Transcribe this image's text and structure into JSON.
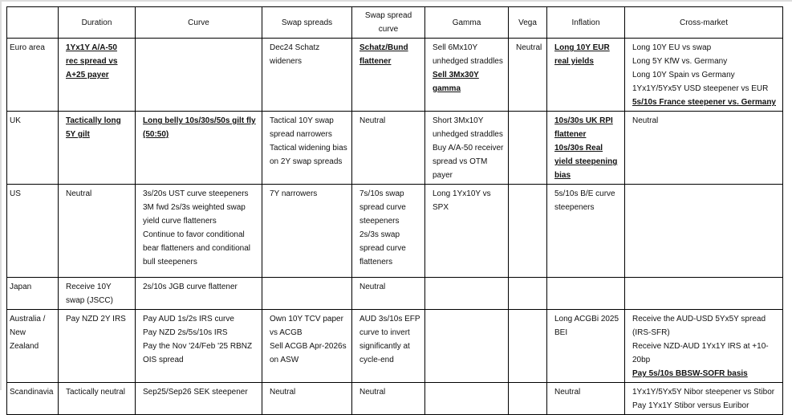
{
  "table": {
    "headers": [
      "",
      "Duration",
      "Curve",
      "Swap spreads",
      "Swap spread curve",
      "Gamma",
      "Vega",
      "Inflation",
      "Cross-market"
    ],
    "rows": [
      {
        "region": "Euro area",
        "cells": [
          [
            {
              "text": "1Yx1Y A/A-50 rec spread vs A+25 payer",
              "bold": true
            }
          ],
          [],
          [
            {
              "text": "Dec24 Schatz wideners",
              "bold": false
            }
          ],
          [
            {
              "text": "Schatz/Bund flattener",
              "bold": true
            }
          ],
          [
            {
              "text": "Sell 6Mx10Y unhedged straddles",
              "bold": false
            },
            {
              "text": "Sell 3Mx30Y gamma",
              "bold": true
            }
          ],
          [
            {
              "text": "Neutral",
              "bold": false
            }
          ],
          [
            {
              "text": "Long 10Y EUR real yields",
              "bold": true
            }
          ],
          [
            {
              "text": "Long 10Y EU vs swap",
              "bold": false
            },
            {
              "text": "Long 5Y KfW vs. Germany",
              "bold": false
            },
            {
              "text": "Long 10Y Spain vs Germany",
              "bold": false
            },
            {
              "text": "1Yx1Y/5Yx5Y USD steepener vs EUR",
              "bold": false
            },
            {
              "text": "5s/10s France steepener vs. Germany",
              "bold": true
            }
          ]
        ]
      },
      {
        "region": "UK",
        "cells": [
          [
            {
              "text": "Tactically long 5Y gilt",
              "bold": true
            }
          ],
          [
            {
              "text": "Long belly 10s/30s/50s gilt fly (50:50)",
              "bold": true
            }
          ],
          [
            {
              "text": "Tactical 10Y swap spread narrowers",
              "bold": false
            },
            {
              "text": "Tactical widening bias on 2Y swap spreads",
              "bold": false
            }
          ],
          [
            {
              "text": "Neutral",
              "bold": false
            }
          ],
          [
            {
              "text": "Short 3Mx10Y unhedged straddles",
              "bold": false
            },
            {
              "text": "Buy A/A-50 receiver spread vs OTM payer",
              "bold": false
            }
          ],
          [],
          [
            {
              "text": "10s/30s UK RPI flattener",
              "bold": true
            },
            {
              "text": "10s/30s Real yield steepening bias",
              "bold": true
            }
          ],
          [
            {
              "text": "Neutral",
              "bold": false
            }
          ]
        ]
      },
      {
        "region": "US",
        "cells": [
          [
            {
              "text": "Neutral",
              "bold": false
            }
          ],
          [
            {
              "text": "3s/20s UST curve steepeners",
              "bold": false
            },
            {
              "text": "3M fwd 2s/3s weighted swap yield curve flatteners",
              "bold": false
            },
            {
              "text": "Continue to favor conditional bear flatteners and conditional bull steepeners",
              "bold": false
            }
          ],
          [
            {
              "text": "7Y narrowers",
              "bold": false
            }
          ],
          [
            {
              "text": "7s/10s swap spread curve steepeners",
              "bold": false
            },
            {
              "text": "2s/3s swap spread curve flatteners",
              "bold": false
            }
          ],
          [
            {
              "text": "Long 1Yx10Y vs SPX",
              "bold": false
            }
          ],
          [],
          [
            {
              "text": "5s/10s B/E curve steepeners",
              "bold": false
            }
          ],
          []
        ]
      },
      {
        "region": "Japan",
        "cells": [
          [
            {
              "text": "Receive 10Y swap (JSCC)",
              "bold": false
            }
          ],
          [
            {
              "text": "2s/10s JGB curve flattener",
              "bold": false
            }
          ],
          [],
          [
            {
              "text": "Neutral",
              "bold": false
            }
          ],
          [],
          [],
          [],
          []
        ]
      },
      {
        "region": "Australia / New Zealand",
        "cells": [
          [
            {
              "text": "Pay NZD 2Y IRS",
              "bold": false
            }
          ],
          [
            {
              "text": "Pay AUD 1s/2s IRS curve",
              "bold": false
            },
            {
              "text": "Pay NZD 2s/5s/10s IRS",
              "bold": false
            },
            {
              "text": "Pay the Nov '24/Feb '25 RBNZ OIS spread",
              "bold": false
            }
          ],
          [
            {
              "text": "Own 10Y TCV paper vs ACGB",
              "bold": false
            },
            {
              "text": "Sell ACGB Apr-2026s on ASW",
              "bold": false
            }
          ],
          [
            {
              "text": "AUD 3s/10s EFP curve to invert significantly at cycle-end",
              "bold": false
            }
          ],
          [],
          [],
          [
            {
              "text": "Long ACGBi 2025 BEI",
              "bold": false
            }
          ],
          [
            {
              "text": "Receive the AUD-USD 5Yx5Y spread (IRS-SFR)",
              "bold": false
            },
            {
              "text": "Receive NZD-AUD 1Yx1Y IRS at +10-20bp",
              "bold": false
            },
            {
              "text": "Pay 5s/10s BBSW-SOFR basis",
              "bold": true
            }
          ]
        ]
      },
      {
        "region": "Scandinavia",
        "cells": [
          [
            {
              "text": "Tactically neutral",
              "bold": false
            }
          ],
          [
            {
              "text": "Sep25/Sep26 SEK steepener",
              "bold": false
            }
          ],
          [
            {
              "text": "Neutral",
              "bold": false
            }
          ],
          [
            {
              "text": "Neutral",
              "bold": false
            }
          ],
          [],
          [],
          [
            {
              "text": "Neutral",
              "bold": false
            }
          ],
          [
            {
              "text": "1Yx1Y/5Yx5Y Nibor steepener vs Stibor",
              "bold": false
            },
            {
              "text": "Pay 1Yx1Y Stibor versus Euribor",
              "bold": false
            }
          ]
        ]
      }
    ]
  }
}
